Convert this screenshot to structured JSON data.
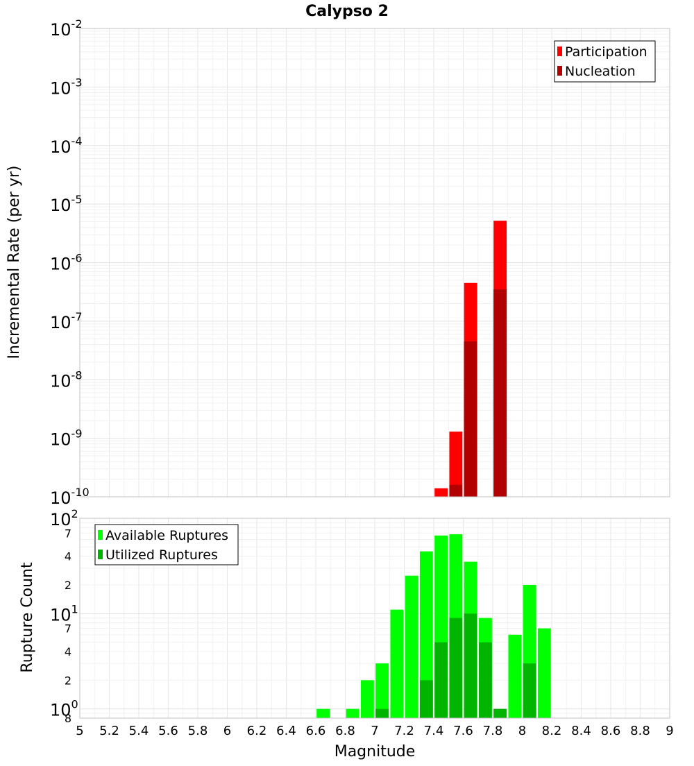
{
  "title": "Calypso 2",
  "xlabel": "Magnitude",
  "colors": {
    "participation": "#ff0000",
    "nucleation": "#b20000",
    "available": "#00ff00",
    "utilized": "#00b400",
    "grid": "#eeeeee",
    "frame": "#c0c0c0"
  },
  "chart_data": [
    {
      "type": "bar",
      "scale": "log",
      "ylabel": "Incremental Rate (per yr)",
      "xlim": [
        5,
        9
      ],
      "ylim": [
        1e-10,
        0.01
      ],
      "y_tick_labels": [
        {
          "base": "10",
          "exp": "-2"
        },
        {
          "base": "10",
          "exp": "-3"
        },
        {
          "base": "10",
          "exp": "-4"
        },
        {
          "base": "10",
          "exp": "-5"
        },
        {
          "base": "10",
          "exp": "-6"
        },
        {
          "base": "10",
          "exp": "-7"
        },
        {
          "base": "10",
          "exp": "-8"
        },
        {
          "base": "10",
          "exp": "-9"
        },
        {
          "base": "10",
          "exp": "-10"
        }
      ],
      "legend": {
        "position": "top-right",
        "entries": [
          "Participation",
          "Nucleation"
        ]
      },
      "bin_width": 0.1,
      "series": [
        {
          "name": "Participation",
          "x": [
            7.45,
            7.55,
            7.65,
            7.85
          ],
          "values": [
            1.4e-10,
            1.3e-09,
            4.5e-07,
            5.2e-06
          ]
        },
        {
          "name": "Nucleation",
          "x": [
            7.55,
            7.65,
            7.85
          ],
          "values": [
            1.6e-10,
            4.5e-08,
            3.5e-07
          ]
        }
      ]
    },
    {
      "type": "bar",
      "scale": "log",
      "ylabel": "Rupture Count",
      "xlim": [
        5,
        9
      ],
      "ylim": [
        0.8,
        100
      ],
      "y_tick_labels": [
        {
          "base": "10",
          "exp": "2"
        },
        {
          "base": "",
          "exp": "",
          "minor": "7"
        },
        {
          "base": "",
          "exp": "",
          "minor": "4"
        },
        {
          "base": "",
          "exp": "",
          "minor": "2"
        },
        {
          "base": "10",
          "exp": "1"
        },
        {
          "base": "",
          "exp": "",
          "minor": "7"
        },
        {
          "base": "",
          "exp": "",
          "minor": "4"
        },
        {
          "base": "",
          "exp": "",
          "minor": "2"
        },
        {
          "base": "10",
          "exp": "0"
        },
        {
          "base": "",
          "exp": "",
          "minor": "8"
        }
      ],
      "legend": {
        "position": "top-left",
        "entries": [
          "Available Ruptures",
          "Utilized Ruptures"
        ]
      },
      "bin_width": 0.1,
      "series": [
        {
          "name": "Available Ruptures",
          "x": [
            6.65,
            6.85,
            6.95,
            7.05,
            7.15,
            7.25,
            7.35,
            7.45,
            7.55,
            7.65,
            7.75,
            7.95,
            8.05,
            8.15
          ],
          "values": [
            1,
            1,
            2,
            3,
            11,
            25,
            45,
            66,
            68,
            35,
            9,
            6,
            20,
            7
          ]
        },
        {
          "name": "Utilized Ruptures",
          "x": [
            7.05,
            7.35,
            7.45,
            7.55,
            7.65,
            7.75,
            7.85,
            8.05
          ],
          "values": [
            1,
            2,
            5,
            9,
            10,
            5,
            1,
            3
          ]
        }
      ],
      "x_tick_labels": [
        "5",
        "5.2",
        "5.4",
        "5.6",
        "5.8",
        "6",
        "6.2",
        "6.4",
        "6.6",
        "6.8",
        "7",
        "7.2",
        "7.4",
        "7.6",
        "7.8",
        "8",
        "8.2",
        "8.4",
        "8.6",
        "8.8",
        "9"
      ]
    }
  ]
}
